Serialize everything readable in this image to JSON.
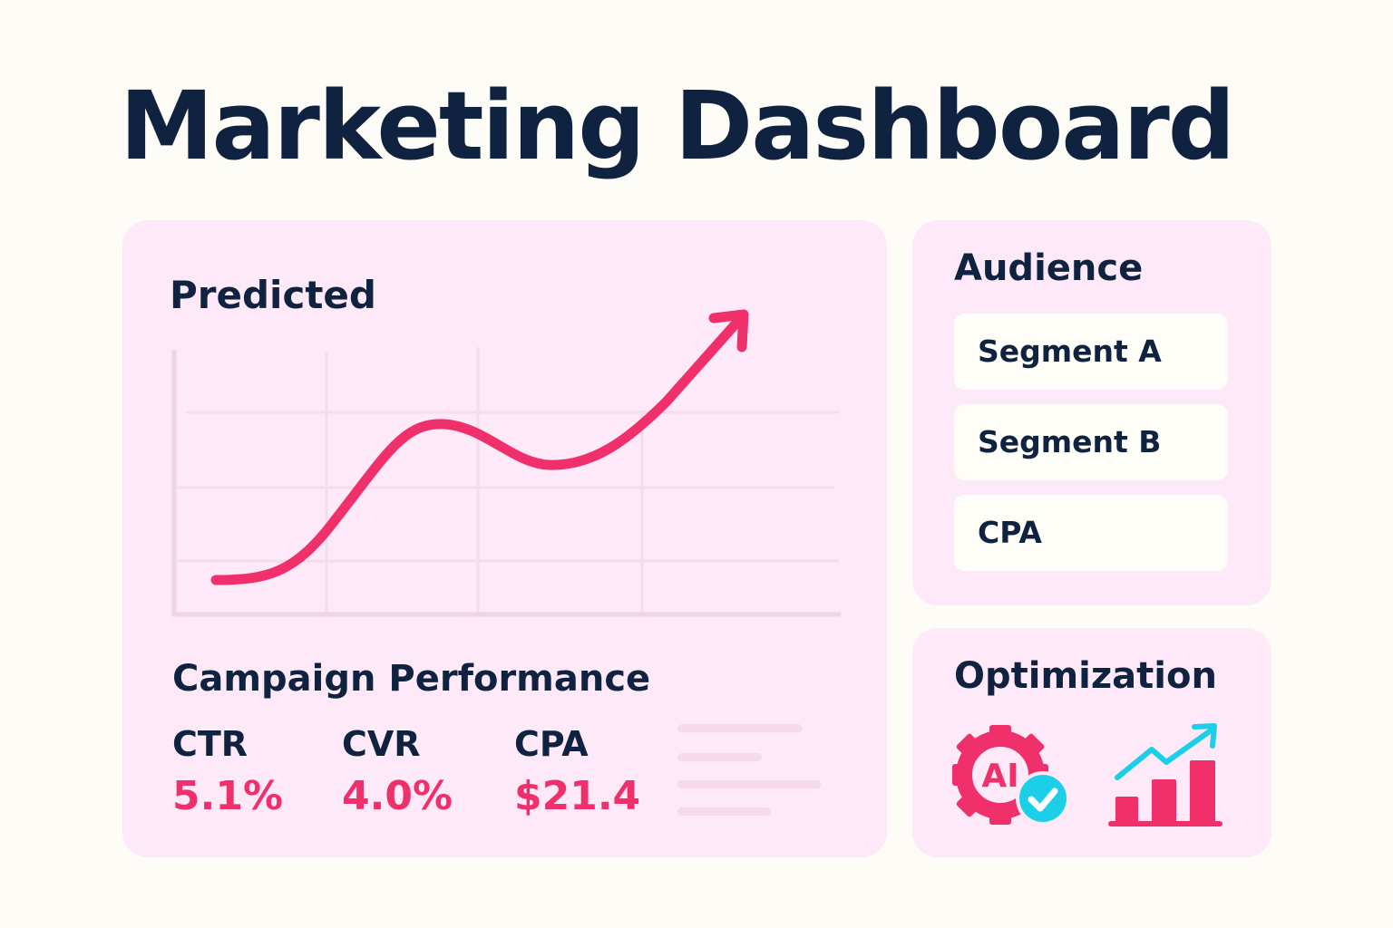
{
  "header": {
    "title": "Marketing Dashboard"
  },
  "colors": {
    "background": "#fdfcf7",
    "panel": "#fde9f8",
    "text": "#0f2240",
    "accent": "#f0306a",
    "secondary_accent": "#1ccfe8"
  },
  "predicted": {
    "title": "Predicted",
    "icon": "trend-arrow-icon"
  },
  "campaign": {
    "title": "Campaign Performance",
    "metrics": [
      {
        "label": "CTR",
        "value": "5.1%"
      },
      {
        "label": "CVR",
        "value": "4.0%"
      },
      {
        "label": "CPA",
        "value": "$21.4"
      }
    ]
  },
  "audience": {
    "title": "Audience",
    "segments": [
      {
        "label": "Segment A"
      },
      {
        "label": "Segment B"
      },
      {
        "label": "CPA"
      }
    ]
  },
  "optimization": {
    "title": "Optimization",
    "icons": [
      {
        "name": "ai-gear-check-icon",
        "text": "AI"
      },
      {
        "name": "bar-chart-growth-icon"
      }
    ]
  }
}
